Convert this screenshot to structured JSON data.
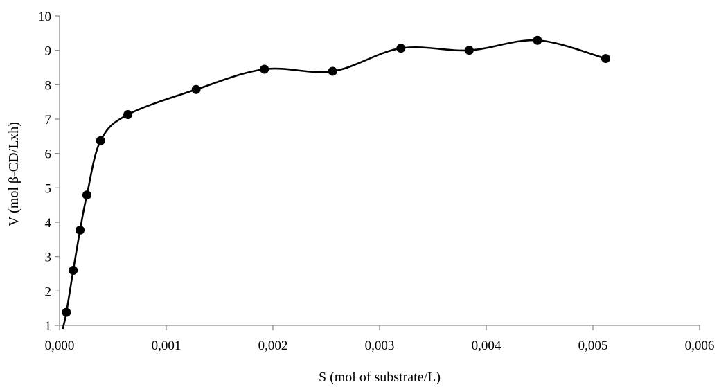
{
  "chart_data": {
    "type": "scatter",
    "title": "",
    "xlabel": "S (mol of substrate/L)",
    "ylabel": "V (mol β-CD/Lxh)",
    "xlim": [
      0,
      0.006
    ],
    "ylim": [
      1,
      10
    ],
    "x_ticks": [
      0,
      0.001,
      0.002,
      0.003,
      0.004,
      0.005,
      0.006
    ],
    "x_tick_labels": [
      "0,000",
      "0,001",
      "0,002",
      "0,003",
      "0,004",
      "0,005",
      "0,006"
    ],
    "y_ticks": [
      1,
      2,
      3,
      4,
      5,
      6,
      7,
      8,
      9,
      10
    ],
    "y_tick_labels": [
      "1",
      "2",
      "3",
      "4",
      "5",
      "6",
      "7",
      "8",
      "9",
      "10"
    ],
    "grid": false,
    "legend": false,
    "smoothed_line": true,
    "curve_start": {
      "x": 3e-05,
      "y": 0.9
    },
    "series": [
      {
        "x": [
          6.4e-05,
          0.000128,
          0.000192,
          0.000256,
          0.000384,
          0.00064,
          0.00128,
          0.00192,
          0.00256,
          0.0032,
          0.00384,
          0.00448,
          0.00512
        ],
        "y": [
          1.38,
          2.6,
          3.77,
          4.79,
          6.37,
          7.13,
          7.86,
          8.45,
          8.39,
          9.06,
          9.0,
          9.29,
          8.76
        ]
      }
    ],
    "colors": {
      "line": "#000000",
      "marker": "#000000",
      "axis": "#8c8c8c"
    }
  }
}
